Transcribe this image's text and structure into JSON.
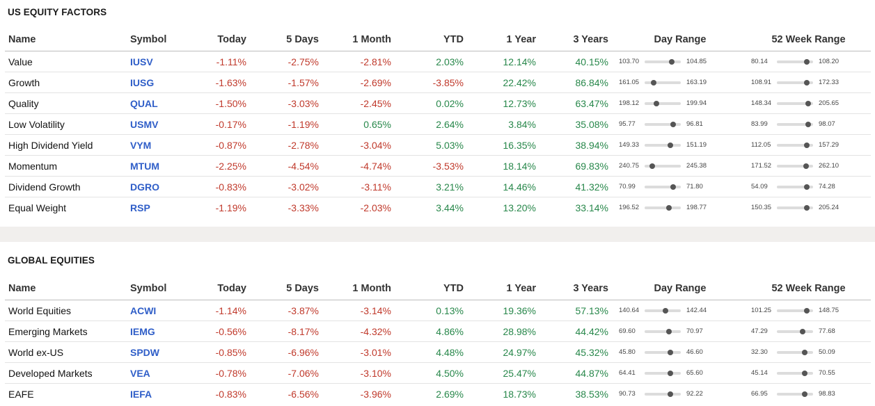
{
  "columns": {
    "name": "Name",
    "symbol": "Symbol",
    "today": "Today",
    "d5": "5 Days",
    "m1": "1 Month",
    "ytd": "YTD",
    "y1": "1 Year",
    "y3": "3 Years",
    "day_range": "Day Range",
    "wk52_range": "52 Week Range"
  },
  "colors": {
    "negative": "#c0392b",
    "positive": "#27874a",
    "symbol": "#2f5ec8"
  },
  "sections": [
    {
      "title": "US EQUITY FACTORS",
      "rows": [
        {
          "name": "Value",
          "symbol": "IUSV",
          "today": "-1.11%",
          "d5": "-2.75%",
          "m1": "-2.81%",
          "ytd": "2.03%",
          "y1": "12.14%",
          "y3": "40.15%",
          "day": {
            "lo": "103.70",
            "hi": "104.85",
            "pos": 0.75
          },
          "wk": {
            "lo": "80.14",
            "hi": "108.20",
            "pos": 0.83
          }
        },
        {
          "name": "Growth",
          "symbol": "IUSG",
          "today": "-1.63%",
          "d5": "-1.57%",
          "m1": "-2.69%",
          "ytd": "-3.85%",
          "y1": "22.42%",
          "y3": "86.84%",
          "day": {
            "lo": "161.05",
            "hi": "163.19",
            "pos": 0.25
          },
          "wk": {
            "lo": "108.91",
            "hi": "172.33",
            "pos": 0.83
          }
        },
        {
          "name": "Quality",
          "symbol": "QUAL",
          "today": "-1.50%",
          "d5": "-3.03%",
          "m1": "-2.45%",
          "ytd": "0.02%",
          "y1": "12.73%",
          "y3": "63.47%",
          "day": {
            "lo": "198.12",
            "hi": "199.94",
            "pos": 0.33
          },
          "wk": {
            "lo": "148.34",
            "hi": "205.65",
            "pos": 0.87
          }
        },
        {
          "name": "Low Volatility",
          "symbol": "USMV",
          "today": "-0.17%",
          "d5": "-1.19%",
          "m1": "0.65%",
          "ytd": "2.64%",
          "y1": "3.84%",
          "y3": "35.08%",
          "day": {
            "lo": "95.77",
            "hi": "96.81",
            "pos": 0.78
          },
          "wk": {
            "lo": "83.99",
            "hi": "98.07",
            "pos": 0.87
          }
        },
        {
          "name": "High Dividend Yield",
          "symbol": "VYM",
          "today": "-0.87%",
          "d5": "-2.78%",
          "m1": "-3.04%",
          "ytd": "5.03%",
          "y1": "16.35%",
          "y3": "38.94%",
          "day": {
            "lo": "149.33",
            "hi": "151.19",
            "pos": 0.72
          },
          "wk": {
            "lo": "112.05",
            "hi": "157.29",
            "pos": 0.83
          }
        },
        {
          "name": "Momentum",
          "symbol": "MTUM",
          "today": "-2.25%",
          "d5": "-4.54%",
          "m1": "-4.74%",
          "ytd": "-3.53%",
          "y1": "18.14%",
          "y3": "69.83%",
          "day": {
            "lo": "240.75",
            "hi": "245.38",
            "pos": 0.22
          },
          "wk": {
            "lo": "171.52",
            "hi": "262.10",
            "pos": 0.8
          }
        },
        {
          "name": "Dividend Growth",
          "symbol": "DGRO",
          "today": "-0.83%",
          "d5": "-3.02%",
          "m1": "-3.11%",
          "ytd": "3.21%",
          "y1": "14.46%",
          "y3": "41.32%",
          "day": {
            "lo": "70.99",
            "hi": "71.80",
            "pos": 0.78
          },
          "wk": {
            "lo": "54.09",
            "hi": "74.28",
            "pos": 0.83
          }
        },
        {
          "name": "Equal Weight",
          "symbol": "RSP",
          "today": "-1.19%",
          "d5": "-3.33%",
          "m1": "-2.03%",
          "ytd": "3.44%",
          "y1": "13.20%",
          "y3": "33.14%",
          "day": {
            "lo": "196.52",
            "hi": "198.77",
            "pos": 0.68
          },
          "wk": {
            "lo": "150.35",
            "hi": "205.24",
            "pos": 0.83
          }
        }
      ]
    },
    {
      "title": "GLOBAL EQUITIES",
      "rows": [
        {
          "name": "World Equities",
          "symbol": "ACWI",
          "today": "-1.14%",
          "d5": "-3.87%",
          "m1": "-3.14%",
          "ytd": "0.13%",
          "y1": "19.36%",
          "y3": "57.13%",
          "day": {
            "lo": "140.64",
            "hi": "142.44",
            "pos": 0.57
          },
          "wk": {
            "lo": "101.25",
            "hi": "148.75",
            "pos": 0.83
          }
        },
        {
          "name": "Emerging Markets",
          "symbol": "IEMG",
          "today": "-0.56%",
          "d5": "-8.17%",
          "m1": "-4.32%",
          "ytd": "4.86%",
          "y1": "28.98%",
          "y3": "44.42%",
          "day": {
            "lo": "69.60",
            "hi": "70.97",
            "pos": 0.68
          },
          "wk": {
            "lo": "47.29",
            "hi": "77.68",
            "pos": 0.72
          }
        },
        {
          "name": "World ex-US",
          "symbol": "SPDW",
          "today": "-0.85%",
          "d5": "-6.96%",
          "m1": "-3.01%",
          "ytd": "4.48%",
          "y1": "24.97%",
          "y3": "45.32%",
          "day": {
            "lo": "45.80",
            "hi": "46.60",
            "pos": 0.72
          },
          "wk": {
            "lo": "32.30",
            "hi": "50.09",
            "pos": 0.77
          }
        },
        {
          "name": "Developed Markets",
          "symbol": "VEA",
          "today": "-0.78%",
          "d5": "-7.06%",
          "m1": "-3.10%",
          "ytd": "4.50%",
          "y1": "25.47%",
          "y3": "44.87%",
          "day": {
            "lo": "64.41",
            "hi": "65.60",
            "pos": 0.72
          },
          "wk": {
            "lo": "45.14",
            "hi": "70.55",
            "pos": 0.77
          }
        },
        {
          "name": "EAFE",
          "symbol": "IEFA",
          "today": "-0.83%",
          "d5": "-6.56%",
          "m1": "-3.96%",
          "ytd": "2.69%",
          "y1": "18.73%",
          "y3": "38.53%",
          "day": {
            "lo": "90.73",
            "hi": "92.22",
            "pos": 0.72
          },
          "wk": {
            "lo": "66.95",
            "hi": "98.83",
            "pos": 0.77
          }
        }
      ]
    }
  ]
}
